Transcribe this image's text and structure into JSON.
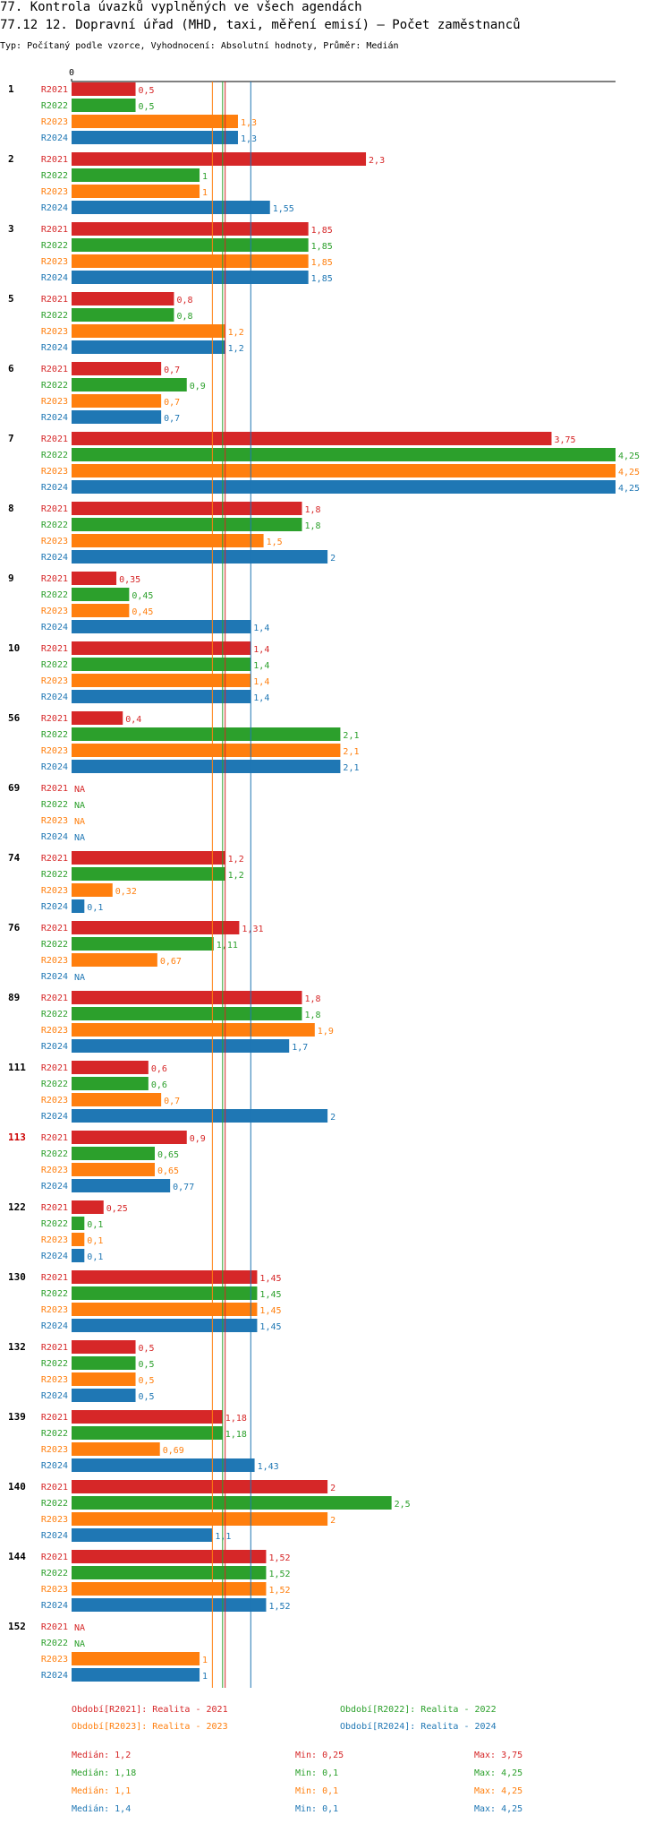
{
  "title": "77. Kontrola úvazků vyplněných ve všech agendách",
  "subtitle": "77.12 12. Dopravní úřad (MHD, taxi, měření emisí) – Počet zaměstnanců",
  "type_line": "Typ: Počítaný podle vzorce, Vyhodnocení: Absolutní hodnoty, Průměr: Medián",
  "colors": {
    "R2021": "#d62728",
    "R2022": "#2ca02c",
    "R2023": "#ff7f0e",
    "R2024": "#1f77b4"
  },
  "highlight_color": "#cc0000",
  "chart_data": {
    "type": "bar",
    "orientation": "horizontal",
    "title": "77.12 12. Dopravní úřad (MHD, taxi, měření emisí) – Počet zaměstnanců",
    "xlim": [
      0,
      4.25
    ],
    "x_tick_label": "0",
    "series_names": [
      "R2021",
      "R2022",
      "R2023",
      "R2024"
    ],
    "categories": [
      {
        "label": "1",
        "highlight": false,
        "values": [
          0.5,
          0.5,
          1.3,
          1.3
        ],
        "labels": [
          "0,5",
          "0,5",
          "1,3",
          "1,3"
        ]
      },
      {
        "label": "2",
        "highlight": false,
        "values": [
          2.3,
          1,
          1,
          1.55
        ],
        "labels": [
          "2,3",
          "1",
          "1",
          "1,55"
        ]
      },
      {
        "label": "3",
        "highlight": false,
        "values": [
          1.85,
          1.85,
          1.85,
          1.85
        ],
        "labels": [
          "1,85",
          "1,85",
          "1,85",
          "1,85"
        ]
      },
      {
        "label": "5",
        "highlight": false,
        "values": [
          0.8,
          0.8,
          1.2,
          1.2
        ],
        "labels": [
          "0,8",
          "0,8",
          "1,2",
          "1,2"
        ]
      },
      {
        "label": "6",
        "highlight": false,
        "values": [
          0.7,
          0.9,
          0.7,
          0.7
        ],
        "labels": [
          "0,7",
          "0,9",
          "0,7",
          "0,7"
        ]
      },
      {
        "label": "7",
        "highlight": false,
        "values": [
          3.75,
          4.25,
          4.25,
          4.25
        ],
        "labels": [
          "3,75",
          "4,25",
          "4,25",
          "4,25"
        ]
      },
      {
        "label": "8",
        "highlight": false,
        "values": [
          1.8,
          1.8,
          1.5,
          2
        ],
        "labels": [
          "1,8",
          "1,8",
          "1,5",
          "2"
        ]
      },
      {
        "label": "9",
        "highlight": false,
        "values": [
          0.35,
          0.45,
          0.45,
          1.4
        ],
        "labels": [
          "0,35",
          "0,45",
          "0,45",
          "1,4"
        ]
      },
      {
        "label": "10",
        "highlight": false,
        "values": [
          1.4,
          1.4,
          1.4,
          1.4
        ],
        "labels": [
          "1,4",
          "1,4",
          "1,4",
          "1,4"
        ]
      },
      {
        "label": "56",
        "highlight": false,
        "values": [
          0.4,
          2.1,
          2.1,
          2.1
        ],
        "labels": [
          "0,4",
          "2,1",
          "2,1",
          "2,1"
        ]
      },
      {
        "label": "69",
        "highlight": false,
        "values": [
          null,
          null,
          null,
          null
        ],
        "labels": [
          "NA",
          "NA",
          "NA",
          "NA"
        ]
      },
      {
        "label": "74",
        "highlight": false,
        "values": [
          1.2,
          1.2,
          0.32,
          0.1
        ],
        "labels": [
          "1,2",
          "1,2",
          "0,32",
          "0,1"
        ]
      },
      {
        "label": "76",
        "highlight": false,
        "values": [
          1.31,
          1.11,
          0.67,
          null
        ],
        "labels": [
          "1,31",
          "1,11",
          "0,67",
          "NA"
        ]
      },
      {
        "label": "89",
        "highlight": false,
        "values": [
          1.8,
          1.8,
          1.9,
          1.7
        ],
        "labels": [
          "1,8",
          "1,8",
          "1,9",
          "1,7"
        ]
      },
      {
        "label": "111",
        "highlight": false,
        "values": [
          0.6,
          0.6,
          0.7,
          2
        ],
        "labels": [
          "0,6",
          "0,6",
          "0,7",
          "2"
        ]
      },
      {
        "label": "113",
        "highlight": true,
        "values": [
          0.9,
          0.65,
          0.65,
          0.77
        ],
        "labels": [
          "0,9",
          "0,65",
          "0,65",
          "0,77"
        ]
      },
      {
        "label": "122",
        "highlight": false,
        "values": [
          0.25,
          0.1,
          0.1,
          0.1
        ],
        "labels": [
          "0,25",
          "0,1",
          "0,1",
          "0,1"
        ]
      },
      {
        "label": "130",
        "highlight": false,
        "values": [
          1.45,
          1.45,
          1.45,
          1.45
        ],
        "labels": [
          "1,45",
          "1,45",
          "1,45",
          "1,45"
        ]
      },
      {
        "label": "132",
        "highlight": false,
        "values": [
          0.5,
          0.5,
          0.5,
          0.5
        ],
        "labels": [
          "0,5",
          "0,5",
          "0,5",
          "0,5"
        ]
      },
      {
        "label": "139",
        "highlight": false,
        "values": [
          1.18,
          1.18,
          0.69,
          1.43
        ],
        "labels": [
          "1,18",
          "1,18",
          "0,69",
          "1,43"
        ]
      },
      {
        "label": "140",
        "highlight": false,
        "values": [
          2,
          2.5,
          2,
          1.1
        ],
        "labels": [
          "2",
          "2,5",
          "2",
          "1,1"
        ]
      },
      {
        "label": "144",
        "highlight": false,
        "values": [
          1.52,
          1.52,
          1.52,
          1.52
        ],
        "labels": [
          "1,52",
          "1,52",
          "1,52",
          "1,52"
        ]
      },
      {
        "label": "152",
        "highlight": false,
        "values": [
          null,
          null,
          1,
          1
        ],
        "labels": [
          "NA",
          "NA",
          "1",
          "1"
        ]
      }
    ],
    "median_lines": [
      1.2,
      1.18,
      1.1,
      1.4
    ],
    "legend": [
      "Období[R2021]: Realita - 2021",
      "Období[R2022]: Realita - 2022",
      "Období[R2023]: Realita - 2023",
      "Období[R2024]: Realita - 2024"
    ],
    "stats": [
      {
        "median": "Medián: 1,2",
        "min": "Min: 0,25",
        "max": "Max: 3,75"
      },
      {
        "median": "Medián: 1,18",
        "min": "Min: 0,1",
        "max": "Max: 4,25"
      },
      {
        "median": "Medián: 1,1",
        "min": "Min: 0,1",
        "max": "Max: 4,25"
      },
      {
        "median": "Medián: 1,4",
        "min": "Min: 0,1",
        "max": "Max: 4,25"
      }
    ]
  }
}
